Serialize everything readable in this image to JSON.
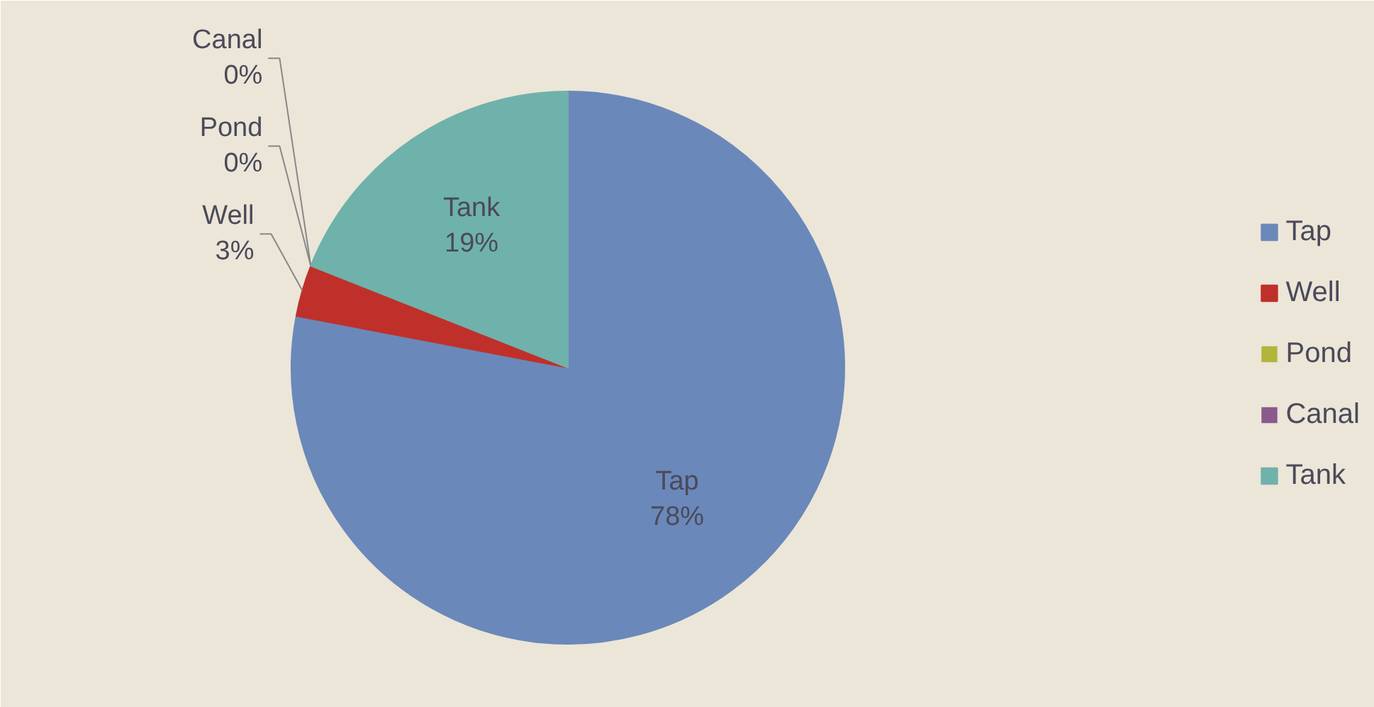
{
  "chart_data": {
    "type": "pie",
    "categories": [
      "Tap",
      "Well",
      "Pond",
      "Canal",
      "Tank"
    ],
    "values": [
      78,
      3,
      0,
      0,
      19
    ],
    "colors": [
      "#6b88ba",
      "#c0302a",
      "#b3b43c",
      "#8a5a8c",
      "#6fb2ab"
    ],
    "value_labels": [
      "78%",
      "3%",
      "0%",
      "0%",
      "19%"
    ],
    "legend": "right"
  }
}
